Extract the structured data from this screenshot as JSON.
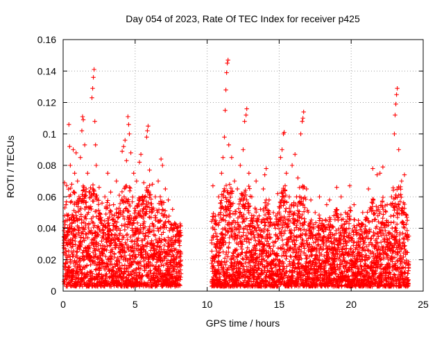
{
  "chart_data": {
    "type": "scatter",
    "title": "Day 054 of 2023, Rate Of TEC Index for receiver p425",
    "xlabel": "GPS time / hours",
    "ylabel": "ROTI / TECUs",
    "xlim": [
      0,
      25
    ],
    "ylim": [
      0,
      0.16
    ],
    "xticks": [
      0,
      5,
      10,
      15,
      20,
      25
    ],
    "xtick_labels": [
      "0",
      "5",
      "10",
      "15",
      "20",
      "25"
    ],
    "yticks": [
      0,
      0.02,
      0.04,
      0.06,
      0.08,
      0.1,
      0.12,
      0.14,
      0.16
    ],
    "ytick_labels": [
      "0",
      "0.02",
      "0.04",
      "0.06",
      "0.08",
      "0.1",
      "0.12",
      "0.14",
      "0.16"
    ],
    "grid": true,
    "marker": "plus",
    "color": "#ff0000",
    "data_gap_hours": [
      8.2,
      10.3
    ],
    "series": [
      {
        "name": "ROTI",
        "points": [
          [
            0.1,
            0.069
          ],
          [
            0.2,
            0.055
          ],
          [
            0.3,
            0.045
          ],
          [
            0.4,
            0.106
          ],
          [
            0.45,
            0.092
          ],
          [
            0.5,
            0.08
          ],
          [
            0.6,
            0.068
          ],
          [
            0.7,
            0.09
          ],
          [
            0.8,
            0.075
          ],
          [
            0.9,
            0.088
          ],
          [
            1.0,
            0.07
          ],
          [
            1.1,
            0.06
          ],
          [
            1.2,
            0.085
          ],
          [
            1.3,
            0.102
          ],
          [
            1.35,
            0.111
          ],
          [
            1.4,
            0.109
          ],
          [
            1.5,
            0.093
          ],
          [
            1.6,
            0.065
          ],
          [
            1.7,
            0.075
          ],
          [
            1.8,
            0.063
          ],
          [
            2.0,
            0.123
          ],
          [
            2.05,
            0.129
          ],
          [
            2.1,
            0.136
          ],
          [
            2.15,
            0.141
          ],
          [
            2.2,
            0.108
          ],
          [
            2.25,
            0.093
          ],
          [
            2.3,
            0.08
          ],
          [
            2.5,
            0.066
          ],
          [
            2.7,
            0.056
          ],
          [
            2.9,
            0.06
          ],
          [
            3.1,
            0.075
          ],
          [
            3.3,
            0.063
          ],
          [
            3.5,
            0.055
          ],
          [
            3.7,
            0.07
          ],
          [
            3.9,
            0.061
          ],
          [
            4.1,
            0.089
          ],
          [
            4.2,
            0.092
          ],
          [
            4.3,
            0.096
          ],
          [
            4.4,
            0.083
          ],
          [
            4.5,
            0.111
          ],
          [
            4.55,
            0.106
          ],
          [
            4.6,
            0.1
          ],
          [
            4.7,
            0.088
          ],
          [
            4.9,
            0.075
          ],
          [
            5.1,
            0.07
          ],
          [
            5.3,
            0.082
          ],
          [
            5.4,
            0.087
          ],
          [
            5.6,
            0.069
          ],
          [
            5.8,
            0.098
          ],
          [
            5.85,
            0.102
          ],
          [
            5.9,
            0.105
          ],
          [
            6.0,
            0.077
          ],
          [
            6.2,
            0.068
          ],
          [
            6.4,
            0.06
          ],
          [
            6.6,
            0.07
          ],
          [
            6.8,
            0.084
          ],
          [
            6.9,
            0.08
          ],
          [
            7.1,
            0.065
          ],
          [
            7.3,
            0.058
          ],
          [
            7.6,
            0.052
          ],
          [
            7.9,
            0.04
          ],
          [
            8.1,
            0.035
          ],
          [
            10.4,
            0.067
          ],
          [
            10.6,
            0.045
          ],
          [
            10.8,
            0.06
          ],
          [
            11.0,
            0.075
          ],
          [
            11.1,
            0.085
          ],
          [
            11.2,
            0.098
          ],
          [
            11.25,
            0.115
          ],
          [
            11.3,
            0.128
          ],
          [
            11.35,
            0.139
          ],
          [
            11.4,
            0.145
          ],
          [
            11.45,
            0.147
          ],
          [
            11.5,
            0.093
          ],
          [
            11.7,
            0.085
          ],
          [
            11.9,
            0.07
          ],
          [
            12.1,
            0.065
          ],
          [
            12.3,
            0.08
          ],
          [
            12.5,
            0.09
          ],
          [
            12.6,
            0.108
          ],
          [
            12.7,
            0.112
          ],
          [
            12.75,
            0.116
          ],
          [
            12.9,
            0.075
          ],
          [
            13.1,
            0.06
          ],
          [
            13.4,
            0.07
          ],
          [
            13.7,
            0.052
          ],
          [
            13.9,
            0.065
          ],
          [
            14.0,
            0.074
          ],
          [
            14.1,
            0.078
          ],
          [
            14.3,
            0.058
          ],
          [
            14.6,
            0.05
          ],
          [
            14.9,
            0.062
          ],
          [
            15.1,
            0.085
          ],
          [
            15.2,
            0.09
          ],
          [
            15.3,
            0.1
          ],
          [
            15.35,
            0.101
          ],
          [
            15.5,
            0.075
          ],
          [
            15.7,
            0.06
          ],
          [
            15.9,
            0.08
          ],
          [
            16.1,
            0.087
          ],
          [
            16.3,
            0.072
          ],
          [
            16.5,
            0.1
          ],
          [
            16.6,
            0.108
          ],
          [
            16.65,
            0.11
          ],
          [
            16.7,
            0.114
          ],
          [
            16.9,
            0.065
          ],
          [
            17.2,
            0.058
          ],
          [
            17.5,
            0.05
          ],
          [
            17.8,
            0.06
          ],
          [
            18.0,
            0.045
          ],
          [
            18.3,
            0.055
          ],
          [
            18.5,
            0.058
          ],
          [
            18.8,
            0.048
          ],
          [
            19.0,
            0.066
          ],
          [
            19.3,
            0.06
          ],
          [
            19.6,
            0.05
          ],
          [
            19.9,
            0.067
          ],
          [
            20.2,
            0.055
          ],
          [
            20.5,
            0.045
          ],
          [
            20.8,
            0.05
          ],
          [
            21.2,
            0.065
          ],
          [
            21.5,
            0.078
          ],
          [
            21.8,
            0.074
          ],
          [
            22.0,
            0.075
          ],
          [
            22.2,
            0.079
          ],
          [
            22.5,
            0.055
          ],
          [
            22.8,
            0.06
          ],
          [
            23.0,
            0.1
          ],
          [
            23.05,
            0.112
          ],
          [
            23.1,
            0.119
          ],
          [
            23.15,
            0.125
          ],
          [
            23.2,
            0.129
          ],
          [
            23.3,
            0.09
          ],
          [
            23.5,
            0.07
          ],
          [
            23.7,
            0.074
          ],
          [
            23.9,
            0.045
          ],
          [
            24.0,
            0.035
          ]
        ]
      }
    ]
  }
}
